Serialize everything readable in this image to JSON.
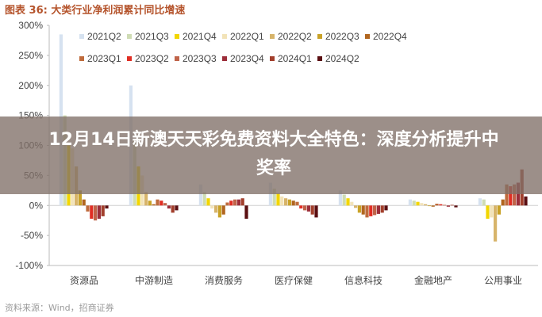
{
  "figure": {
    "label": "图表 36:",
    "title": "大类行业净利润累计同比增速"
  },
  "overlay": {
    "headline": "12月14日新澳天天彩免费资料大全特色：深度分析提升中奖率"
  },
  "source": "资料来源：Wind，招商证券",
  "chart_data": {
    "type": "bar",
    "title": "大类行业净利润累计同比增速",
    "xlabel": "",
    "ylabel": "",
    "ylim": [
      -100,
      300
    ],
    "yticks": [
      -100,
      -50,
      0,
      50,
      100,
      150,
      200,
      250,
      300
    ],
    "ytick_labels": [
      "-100%",
      "-50%",
      "0%",
      "50%",
      "100%",
      "150%",
      "200%",
      "250%",
      "300%"
    ],
    "grid": false,
    "legend_position": "top",
    "categories": [
      "资源品",
      "中游制造",
      "消费服务",
      "医疗保健",
      "信息科技",
      "金融地产",
      "公用事业"
    ],
    "series": [
      {
        "name": "2021Q2",
        "color": "#d6e2f0",
        "values": [
          285,
          200,
          35,
          38,
          25,
          10,
          12
        ]
      },
      {
        "name": "2021Q3",
        "color": "#cfdcb4",
        "values": [
          150,
          110,
          22,
          28,
          18,
          8,
          10
        ]
      },
      {
        "name": "2021Q4",
        "color": "#f2d600",
        "values": [
          100,
          65,
          12,
          20,
          12,
          6,
          -22
        ]
      },
      {
        "name": "2022Q1",
        "color": "#f2e3b8",
        "values": [
          95,
          50,
          -5,
          15,
          6,
          4,
          -20
        ]
      },
      {
        "name": "2022Q2",
        "color": "#d7b46a",
        "values": [
          65,
          22,
          -12,
          12,
          -4,
          2,
          -60
        ]
      },
      {
        "name": "2022Q3",
        "color": "#c9a227",
        "values": [
          25,
          8,
          -20,
          10,
          -12,
          -1,
          -15
        ]
      },
      {
        "name": "2022Q4",
        "color": "#b1661f",
        "values": [
          10,
          2,
          -15,
          8,
          -15,
          -2,
          10
        ]
      },
      {
        "name": "2023Q1",
        "color": "#bf6b3c",
        "values": [
          -10,
          10,
          5,
          6,
          -20,
          3,
          35
        ]
      },
      {
        "name": "2023Q2",
        "color": "#e02e24",
        "values": [
          -22,
          8,
          8,
          -5,
          -18,
          2,
          32
        ]
      },
      {
        "name": "2023Q3",
        "color": "#c0644a",
        "values": [
          -25,
          4,
          10,
          -8,
          -16,
          1,
          35
        ]
      },
      {
        "name": "2023Q4",
        "color": "#9c2e3a",
        "values": [
          -22,
          -5,
          10,
          -10,
          -14,
          -2,
          38
        ]
      },
      {
        "name": "2024Q1",
        "color": "#a23f2c",
        "values": [
          -18,
          -12,
          12,
          -15,
          -12,
          1,
          60
        ]
      },
      {
        "name": "2024Q2",
        "color": "#5a0f12",
        "values": [
          -5,
          -8,
          -22,
          -20,
          -8,
          -3,
          15
        ]
      }
    ]
  },
  "colors": {
    "title": "#b5542c",
    "axis": "#444444",
    "overlay_bg": "#807068"
  }
}
